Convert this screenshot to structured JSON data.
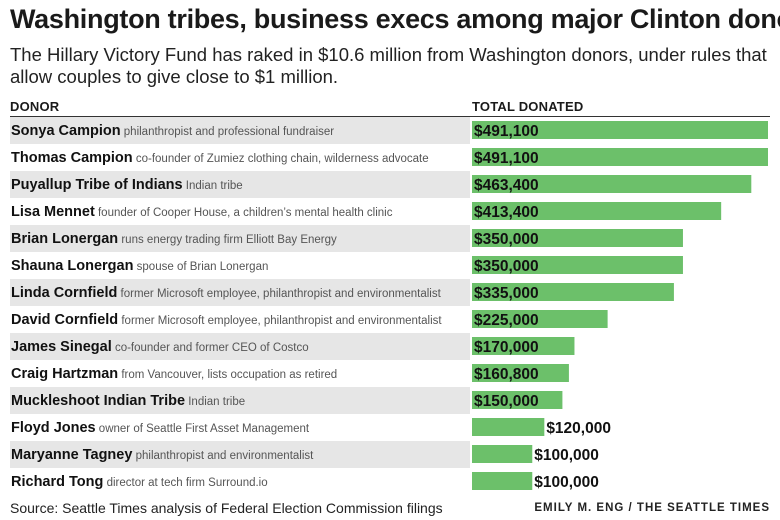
{
  "header": {
    "title": "Washington tribes, business execs among major Clinton donors",
    "subtitle": "The Hillary Victory Fund has raked in $10.6 million from Washington donors, under rules that allow couples to give close to $1 million."
  },
  "columns": {
    "donor": "DONOR",
    "total": "TOTAL DONATED"
  },
  "footer": {
    "source": "Source: Seattle Times analysis of Federal Election Commission filings",
    "credit": "EMILY M. ENG / THE SEATTLE TIMES"
  },
  "colors": {
    "bar": "#6cc06a",
    "row_shade": "#e6e6e6"
  },
  "chart_data": {
    "type": "bar",
    "orientation": "horizontal",
    "categories": [
      "Sonya Campion",
      "Thomas Campion",
      "Puyallup Tribe of Indians",
      "Lisa Mennet",
      "Brian Lonergan",
      "Shauna Lonergan",
      "Linda Cornfield",
      "David Cornfield",
      "James Sinegal",
      "Craig Hartzman",
      "Muckleshoot Indian Tribe",
      "Floyd Jones",
      "Maryanne Tagney",
      "Richard Tong"
    ],
    "descriptions": [
      "philanthropist and professional fundraiser",
      "co-founder of Zumiez clothing chain, wilderness advocate",
      "Indian tribe",
      "founder of Cooper House, a children’s mental health clinic",
      "runs energy trading firm Elliott Bay Energy",
      "spouse of Brian Lonergan",
      "former Microsoft employee, philanthropist and environmentalist",
      "former Microsoft employee, philanthropist and environmentalist",
      "co-founder and former CEO of Costco",
      "from Vancouver, lists occupation as retired",
      "Indian tribe",
      "owner of Seattle First Asset Management",
      "philanthropist and environmentalist",
      "director at tech firm Surround.io"
    ],
    "values": [
      491100,
      491100,
      463400,
      413400,
      350000,
      350000,
      335000,
      225000,
      170000,
      160800,
      150000,
      120000,
      100000,
      100000
    ],
    "value_labels": [
      "$491,100",
      "$491,100",
      "$463,400",
      "$413,400",
      "$350,000",
      "$350,000",
      "$335,000",
      "$225,000",
      "$170,000",
      "$160,800",
      "$150,000",
      "$120,000",
      "$100,000",
      "$100,000"
    ],
    "xlim": [
      0,
      491100
    ],
    "grid": false
  }
}
